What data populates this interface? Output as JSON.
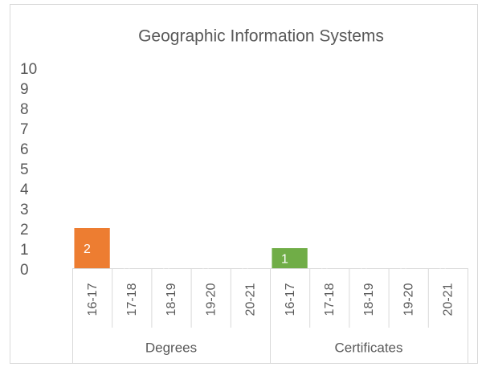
{
  "chart_data": {
    "type": "bar",
    "title": "Geographic Information Systems",
    "series": [
      {
        "name": "Degrees",
        "color": "#ed7d31",
        "categories": [
          "16-17",
          "17-18",
          "18-19",
          "19-20",
          "20-21"
        ],
        "values": [
          2,
          0,
          0,
          0,
          0
        ]
      },
      {
        "name": "Certificates",
        "color": "#70ad47",
        "categories": [
          "16-17",
          "17-18",
          "18-19",
          "19-20",
          "20-21"
        ],
        "values": [
          1,
          0,
          0,
          0,
          0
        ]
      }
    ],
    "ylim": [
      0,
      10
    ],
    "yticks": [
      0,
      1,
      2,
      3,
      4,
      5,
      6,
      7,
      8,
      9,
      10
    ],
    "grid": false
  }
}
